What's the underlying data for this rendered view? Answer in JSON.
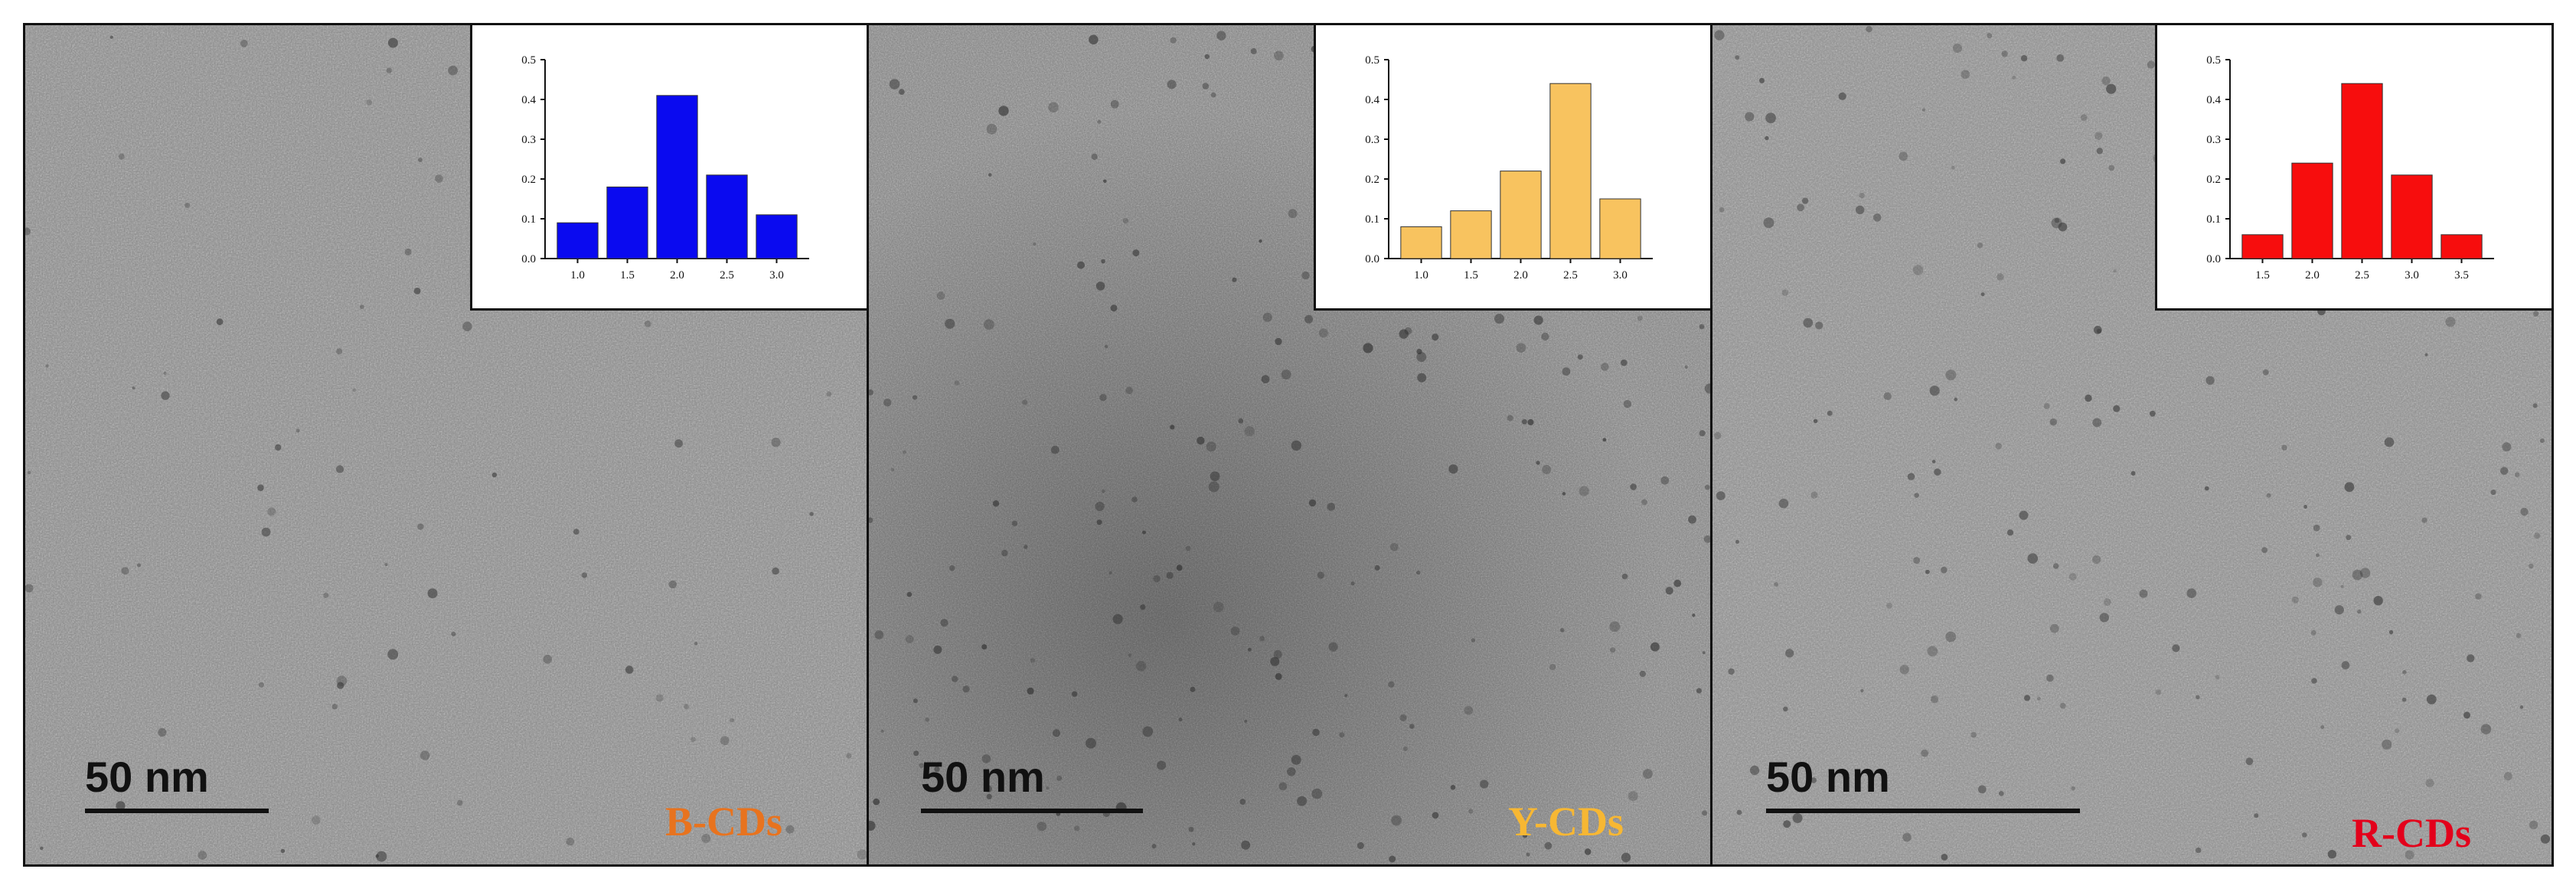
{
  "panels": [
    {
      "scale_label": "50 nm",
      "sample_label": "B-CDs",
      "sample_color": "#e8731e",
      "bar_color": "#0a0af0",
      "chart_data": {
        "type": "bar",
        "categories": [
          "1.0",
          "1.5",
          "2.0",
          "2.5",
          "3.0"
        ],
        "values": [
          0.09,
          0.18,
          0.41,
          0.21,
          0.11
        ],
        "ylim": [
          0,
          0.5
        ],
        "yticks": [
          "0.0",
          "0.1",
          "0.2",
          "0.3",
          "0.4",
          "0.5"
        ]
      }
    },
    {
      "scale_label": "50 nm",
      "sample_label": "Y-CDs",
      "sample_color": "#f7b733",
      "bar_color": "#f8c35f",
      "chart_data": {
        "type": "bar",
        "categories": [
          "1.0",
          "1.5",
          "2.0",
          "2.5",
          "3.0"
        ],
        "values": [
          0.08,
          0.12,
          0.22,
          0.44,
          0.15
        ],
        "ylim": [
          0,
          0.5
        ],
        "yticks": [
          "0.0",
          "0.1",
          "0.2",
          "0.3",
          "0.4",
          "0.5"
        ]
      }
    },
    {
      "scale_label": "50 nm",
      "sample_label": "R-CDs",
      "sample_color": "#e3001b",
      "bar_color": "#f70d0d",
      "chart_data": {
        "type": "bar",
        "categories": [
          "1.5",
          "2.0",
          "2.5",
          "3.0",
          "3.5"
        ],
        "values": [
          0.06,
          0.24,
          0.44,
          0.21,
          0.06
        ],
        "ylim": [
          0,
          0.5
        ],
        "yticks": [
          "0.0",
          "0.1",
          "0.2",
          "0.3",
          "0.4",
          "0.5"
        ]
      }
    }
  ]
}
